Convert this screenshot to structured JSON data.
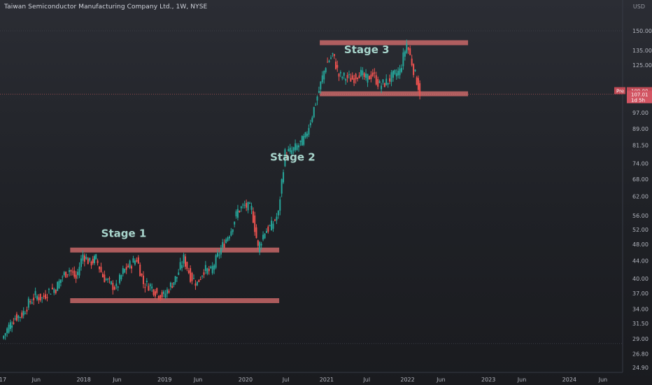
{
  "header": {
    "title": "Taiwan Semiconductor Manufacturing Company Ltd., 1W, NYSE",
    "currency": "USD"
  },
  "chart_data": {
    "type": "candlestick",
    "title": "Taiwan Semiconductor Manufacturing Company Ltd., 1W, NYSE",
    "y_scale": "log",
    "ylim": [
      24.9,
      150
    ],
    "y_ticks": [
      24.9,
      26.8,
      29.0,
      31.5,
      34.0,
      37.0,
      40.0,
      44.0,
      48.0,
      52.0,
      56.0,
      62.0,
      68.0,
      74.0,
      81.5,
      89.0,
      97.0,
      107.01,
      109.0,
      125.0,
      135.0,
      150.0
    ],
    "y_tick_labels": [
      "24.90",
      "26.80",
      "29.00",
      "31.50",
      "34.00",
      "37.00",
      "40.00",
      "44.00",
      "48.00",
      "52.00",
      "56.00",
      "62.00",
      "68.00",
      "74.00",
      "81.50",
      "89.00",
      "97.00",
      "107.01",
      "109.00",
      "125.00",
      "135.00",
      "150.00"
    ],
    "x_ticks": [
      {
        "date": "2017-01",
        "label": "17"
      },
      {
        "date": "2017-06",
        "label": "Jun"
      },
      {
        "date": "2018-01",
        "label": "2018"
      },
      {
        "date": "2018-06",
        "label": "Jun"
      },
      {
        "date": "2019-01",
        "label": "2019"
      },
      {
        "date": "2019-06",
        "label": "Jun"
      },
      {
        "date": "2020-01",
        "label": "2020"
      },
      {
        "date": "2020-07",
        "label": "Jul"
      },
      {
        "date": "2021-01",
        "label": "2021"
      },
      {
        "date": "2021-07",
        "label": "Jul"
      },
      {
        "date": "2022-01",
        "label": "2022"
      },
      {
        "date": "2022-06",
        "label": "Jun"
      },
      {
        "date": "2023-01",
        "label": "2023"
      },
      {
        "date": "2023-06",
        "label": "Jun"
      },
      {
        "date": "2024-01",
        "label": "2024"
      },
      {
        "date": "2024-06",
        "label": "Jun"
      }
    ],
    "price_path": [
      {
        "date": "2017-01",
        "close": 29.0
      },
      {
        "date": "2017-02",
        "close": 31.0
      },
      {
        "date": "2017-03",
        "close": 32.5
      },
      {
        "date": "2017-04",
        "close": 33.0
      },
      {
        "date": "2017-05",
        "close": 35.0
      },
      {
        "date": "2017-06",
        "close": 36.5
      },
      {
        "date": "2017-07",
        "close": 36.0
      },
      {
        "date": "2017-08",
        "close": 37.5
      },
      {
        "date": "2017-09",
        "close": 38.0
      },
      {
        "date": "2017-10",
        "close": 40.5
      },
      {
        "date": "2017-11",
        "close": 42.0
      },
      {
        "date": "2017-12",
        "close": 40.0
      },
      {
        "date": "2018-01",
        "close": 45.5
      },
      {
        "date": "2018-02",
        "close": 43.5
      },
      {
        "date": "2018-03",
        "close": 44.5
      },
      {
        "date": "2018-04",
        "close": 40.5
      },
      {
        "date": "2018-05",
        "close": 39.0
      },
      {
        "date": "2018-06",
        "close": 38.0
      },
      {
        "date": "2018-07",
        "close": 41.5
      },
      {
        "date": "2018-08",
        "close": 43.0
      },
      {
        "date": "2018-09",
        "close": 44.5
      },
      {
        "date": "2018-10",
        "close": 39.0
      },
      {
        "date": "2018-11",
        "close": 38.5
      },
      {
        "date": "2018-12",
        "close": 37.0
      },
      {
        "date": "2019-01",
        "close": 36.5
      },
      {
        "date": "2019-02",
        "close": 38.5
      },
      {
        "date": "2019-03",
        "close": 40.5
      },
      {
        "date": "2019-04",
        "close": 44.5
      },
      {
        "date": "2019-05",
        "close": 40.5
      },
      {
        "date": "2019-06",
        "close": 39.0
      },
      {
        "date": "2019-07",
        "close": 42.0
      },
      {
        "date": "2019-08",
        "close": 41.5
      },
      {
        "date": "2019-09",
        "close": 45.0
      },
      {
        "date": "2019-10",
        "close": 48.5
      },
      {
        "date": "2019-11",
        "close": 52.0
      },
      {
        "date": "2019-12",
        "close": 57.5
      },
      {
        "date": "2020-01",
        "close": 59.0
      },
      {
        "date": "2020-02",
        "close": 58.0
      },
      {
        "date": "2020-03",
        "close": 47.0
      },
      {
        "date": "2020-04",
        "close": 51.5
      },
      {
        "date": "2020-05",
        "close": 53.0
      },
      {
        "date": "2020-06",
        "close": 56.5
      },
      {
        "date": "2020-07",
        "close": 78.0
      },
      {
        "date": "2020-08",
        "close": 79.0
      },
      {
        "date": "2020-09",
        "close": 81.5
      },
      {
        "date": "2020-10",
        "close": 85.0
      },
      {
        "date": "2020-11",
        "close": 96.0
      },
      {
        "date": "2020-12",
        "close": 109.0
      },
      {
        "date": "2021-01",
        "close": 125.0
      },
      {
        "date": "2021-02",
        "close": 132.0
      },
      {
        "date": "2021-03",
        "close": 118.0
      },
      {
        "date": "2021-04",
        "close": 117.0
      },
      {
        "date": "2021-05",
        "close": 116.0
      },
      {
        "date": "2021-06",
        "close": 120.0
      },
      {
        "date": "2021-07",
        "close": 116.0
      },
      {
        "date": "2021-08",
        "close": 119.0
      },
      {
        "date": "2021-09",
        "close": 112.0
      },
      {
        "date": "2021-10",
        "close": 114.0
      },
      {
        "date": "2021-11",
        "close": 118.0
      },
      {
        "date": "2021-12",
        "close": 121.0
      },
      {
        "date": "2022-01",
        "close": 140.0
      },
      {
        "date": "2022-02",
        "close": 122.0
      },
      {
        "date": "2022-03",
        "close": 108.0
      }
    ],
    "ranges": [
      {
        "name": "Stage 1",
        "low": 35.5,
        "high": 46.5,
        "from": "2017-11",
        "to": "2020-06"
      },
      {
        "name": "Stage 3",
        "low": 107.0,
        "high": 140.5,
        "from": "2020-12",
        "to": "2022-10"
      }
    ],
    "annotations": [
      {
        "text": "Stage 1",
        "date": "2018-07",
        "price": 50.0
      },
      {
        "text": "Stage 2",
        "date": "2020-08",
        "price": 75.0
      },
      {
        "text": "Stage 3",
        "date": "2021-07",
        "price": 133.0
      }
    ],
    "last_price": 107.01,
    "last_price_label": "107.01",
    "last_price_countdown": "1d 5h",
    "pre_market_label": "Pre",
    "pre_market_price": 109.0,
    "pre_market_price_label": "109.00",
    "colors": {
      "up": "#26a69a",
      "down": "#ef5350",
      "range_fill": "#e57373",
      "annotation_text": "#a8d5cc"
    }
  }
}
